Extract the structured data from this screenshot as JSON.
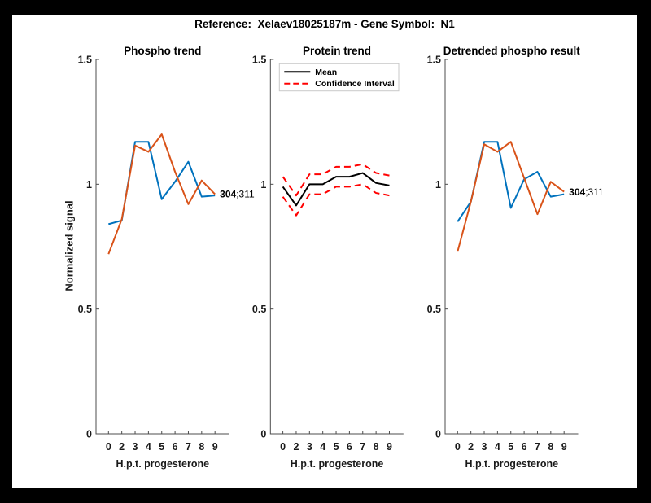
{
  "figure": {
    "title": "Reference:  Xelaev18025187m - Gene Symbol:  N1",
    "page_background": "#000000",
    "canvas_background": "#FFFFFF"
  },
  "axes": {
    "ylabel": "Normalized signal",
    "xlabel": "H.p.t. progesterone",
    "ylim": [
      0,
      1.5
    ],
    "ytick_labels": [
      "0",
      "0.5",
      "1",
      "1.5"
    ],
    "ytick_values": [
      0,
      0.5,
      1,
      1.5
    ],
    "xtick_labels": [
      "0",
      "2",
      "3",
      "4",
      "5",
      "6",
      "7",
      "8",
      "9"
    ],
    "grid": false
  },
  "colors": {
    "series_blue": "#0072BD",
    "series_orange": "#D95319",
    "mean_line": "#000000",
    "confidence_line": "#FF0000",
    "axis_line": "#4D4D4D"
  },
  "annotation": {
    "text": "304;311",
    "bold_part": "304",
    "regular_part": ";311"
  },
  "legend": {
    "position": "northwest",
    "entries": [
      {
        "label": "Mean",
        "color": "#000000",
        "dash": "solid"
      },
      {
        "label": "Confidence Interval",
        "color": "#FF0000",
        "dash": "dashed"
      }
    ]
  },
  "chart_data": [
    {
      "type": "line",
      "title": "Phospho trend",
      "xlabel": "H.p.t. progesterone",
      "ylabel": "Normalized signal",
      "x_tick_labels": [
        "0",
        "2",
        "3",
        "4",
        "5",
        "6",
        "7",
        "8",
        "9"
      ],
      "ylim": [
        0,
        1.5
      ],
      "annotation": "304;311",
      "series": [
        {
          "name": "phospho site 304",
          "color": "#0072BD",
          "dash": "solid",
          "values": [
            0.84,
            0.855,
            1.17,
            1.17,
            0.94,
            1.01,
            1.09,
            0.95,
            0.955
          ]
        },
        {
          "name": "phospho site 311",
          "color": "#D95319",
          "dash": "solid",
          "values": [
            0.72,
            0.86,
            1.155,
            1.13,
            1.2,
            1.05,
            0.92,
            1.015,
            0.96
          ]
        }
      ]
    },
    {
      "type": "line",
      "title": "Protein trend",
      "xlabel": "H.p.t. progesterone",
      "x_tick_labels": [
        "0",
        "2",
        "3",
        "4",
        "5",
        "6",
        "7",
        "8",
        "9"
      ],
      "ylim": [
        0,
        1.5
      ],
      "show_legend": true,
      "series": [
        {
          "name": "Mean",
          "color": "#000000",
          "dash": "solid",
          "values": [
            0.99,
            0.915,
            1.0,
            1.0,
            1.03,
            1.03,
            1.045,
            1.005,
            0.995
          ]
        },
        {
          "name": "Confidence Interval upper",
          "color": "#FF0000",
          "dash": "dashed",
          "values": [
            1.03,
            0.955,
            1.04,
            1.04,
            1.07,
            1.07,
            1.08,
            1.045,
            1.035
          ]
        },
        {
          "name": "Confidence Interval lower",
          "color": "#FF0000",
          "dash": "dashed",
          "values": [
            0.95,
            0.875,
            0.96,
            0.96,
            0.99,
            0.99,
            1.0,
            0.965,
            0.955
          ]
        }
      ]
    },
    {
      "type": "line",
      "title": "Detrended phospho result",
      "xlabel": "H.p.t. progesterone",
      "x_tick_labels": [
        "0",
        "2",
        "3",
        "4",
        "5",
        "6",
        "7",
        "8",
        "9"
      ],
      "ylim": [
        0,
        1.5
      ],
      "annotation": "304;311",
      "series": [
        {
          "name": "phospho site 304",
          "color": "#0072BD",
          "dash": "solid",
          "values": [
            0.85,
            0.93,
            1.17,
            1.17,
            0.905,
            1.02,
            1.05,
            0.95,
            0.96
          ]
        },
        {
          "name": "phospho site 311",
          "color": "#D95319",
          "dash": "solid",
          "values": [
            0.73,
            0.93,
            1.16,
            1.13,
            1.17,
            1.025,
            0.88,
            1.01,
            0.97
          ]
        }
      ]
    }
  ]
}
